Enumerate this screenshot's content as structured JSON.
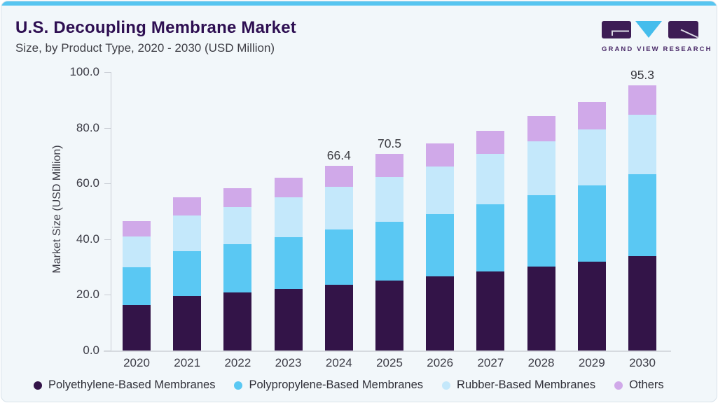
{
  "header": {
    "title": "U.S. Decoupling Membrane Market",
    "subtitle": "Size, by Product Type, 2020 - 2030 (USD Million)"
  },
  "logo": {
    "brand": "GRAND VIEW RESEARCH",
    "marks": [
      "g-block",
      "v-triangle",
      "r-block"
    ],
    "purple": "#3D1D55",
    "cyan": "#45BDEC"
  },
  "colors": {
    "accent_strip": "#57C5F0",
    "card_background": "#F2F7FA",
    "title_text": "#2E0F52",
    "body_text": "#3C3C46",
    "axis_line": "#C9CDD4"
  },
  "chart_data": {
    "type": "bar",
    "stacked": true,
    "title": "U.S. Decoupling Membrane Market Size, by Product Type, 2020 - 2030 (USD Million)",
    "ylabel": "Market Size (USD Million)",
    "xlabel": "",
    "ylim": [
      0,
      100
    ],
    "ytick_labels": [
      "0.0",
      "20.0",
      "40.0",
      "60.0",
      "80.0",
      "100.0"
    ],
    "grid": false,
    "legend_position": "bottom",
    "categories": [
      "2020",
      "2021",
      "2022",
      "2023",
      "2024",
      "2025",
      "2026",
      "2027",
      "2028",
      "2029",
      "2030"
    ],
    "series": [
      {
        "name": "Polyethylene-Based Membranes",
        "color": "#331448",
        "values": [
          16.4,
          19.5,
          20.8,
          22.1,
          23.6,
          25.0,
          26.7,
          28.3,
          30.2,
          32.0,
          34.0
        ]
      },
      {
        "name": "Polypropylene-Based Membranes",
        "color": "#5AC8F3",
        "values": [
          13.5,
          16.2,
          17.3,
          18.5,
          19.8,
          21.2,
          22.4,
          24.1,
          25.6,
          27.4,
          29.3
        ]
      },
      {
        "name": "Rubber-Based Membranes",
        "color": "#C4E8FB",
        "values": [
          11.0,
          12.7,
          13.3,
          14.4,
          15.3,
          16.2,
          17.1,
          18.1,
          19.2,
          20.0,
          21.3
        ]
      },
      {
        "name": "Others",
        "color": "#D0A9E9",
        "values": [
          5.5,
          6.7,
          6.9,
          7.1,
          7.7,
          8.1,
          8.2,
          8.5,
          9.1,
          9.8,
          10.7
        ]
      }
    ],
    "totals": [
      46.4,
      55.1,
      58.3,
      62.1,
      66.4,
      70.5,
      74.4,
      79.0,
      84.1,
      89.2,
      95.3
    ],
    "total_labels": [
      "",
      "",
      "",
      "",
      "66.4",
      "70.5",
      "",
      "",
      "",
      "",
      "95.3"
    ]
  }
}
